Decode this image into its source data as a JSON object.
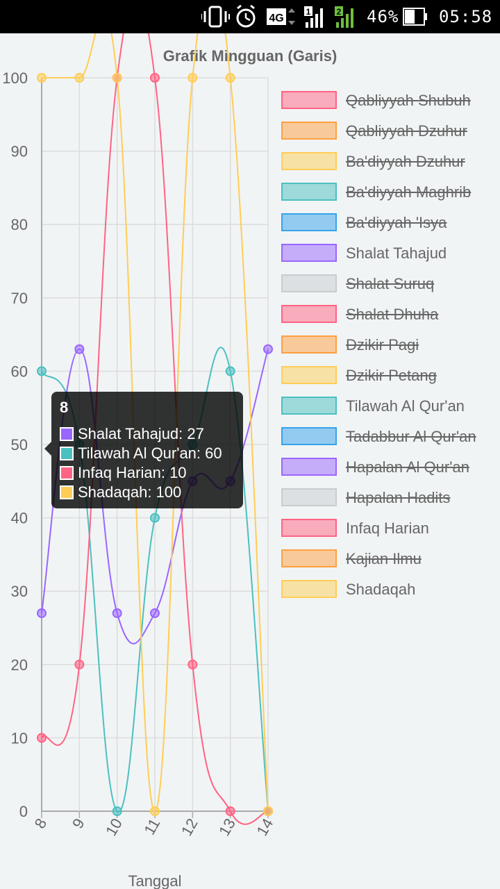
{
  "status_bar": {
    "battery_label": "46%",
    "time": "05:58",
    "network_label": "4G",
    "sim1_label": "1",
    "sim2_label": "2"
  },
  "chart_data": {
    "type": "line",
    "title": "Grafik Mingguan (Garis)",
    "xlabel": "Tanggal",
    "ylabel": "",
    "x": [
      "8",
      "9",
      "10",
      "11",
      "12",
      "13",
      "14"
    ],
    "ylim": [
      0,
      100
    ],
    "yticks": [
      0,
      10,
      20,
      30,
      40,
      50,
      60,
      70,
      80,
      90,
      100
    ],
    "grid": true,
    "legend_position": "right",
    "legend": [
      {
        "label": "Qabliyyah Shubuh",
        "color": "#ff6384",
        "hidden": true
      },
      {
        "label": "Qabliyyah Dzuhur",
        "color": "#ff9f40",
        "hidden": true
      },
      {
        "label": "Ba'diyyah Dzuhur",
        "color": "#ffcd56",
        "hidden": true
      },
      {
        "label": "Ba'diyyah Maghrib",
        "color": "#4bc0c0",
        "hidden": true
      },
      {
        "label": "Ba'diyyah 'Isya",
        "color": "#36a2eb",
        "hidden": true
      },
      {
        "label": "Shalat Tahajud",
        "color": "#9966ff",
        "hidden": false
      },
      {
        "label": "Shalat Suruq",
        "color": "#c9cbcf",
        "hidden": true
      },
      {
        "label": "Shalat Dhuha",
        "color": "#ff6384",
        "hidden": true
      },
      {
        "label": "Dzikir Pagi",
        "color": "#ff9f40",
        "hidden": true
      },
      {
        "label": "Dzikir Petang",
        "color": "#ffcd56",
        "hidden": true
      },
      {
        "label": "Tilawah Al Qur'an",
        "color": "#4bc0c0",
        "hidden": false
      },
      {
        "label": "Tadabbur Al Qur'an",
        "color": "#36a2eb",
        "hidden": true
      },
      {
        "label": "Hapalan Al Qur'an",
        "color": "#9966ff",
        "hidden": true
      },
      {
        "label": "Hapalan Hadits",
        "color": "#c9cbcf",
        "hidden": true
      },
      {
        "label": "Infaq Harian",
        "color": "#ff6384",
        "hidden": false
      },
      {
        "label": "Kajian Ilmu",
        "color": "#ff9f40",
        "hidden": true
      },
      {
        "label": "Shadaqah",
        "color": "#ffcd56",
        "hidden": false
      }
    ],
    "series": [
      {
        "name": "Shalat Tahajud",
        "color": "#9966ff",
        "values": [
          27,
          63,
          27,
          27,
          45,
          45,
          63
        ]
      },
      {
        "name": "Tilawah Al Qur'an",
        "color": "#4bc0c0",
        "values": [
          60,
          50,
          0,
          40,
          50,
          60,
          0
        ]
      },
      {
        "name": "Infaq Harian",
        "color": "#ff6384",
        "values": [
          10,
          20,
          100,
          100,
          20,
          0,
          0
        ]
      },
      {
        "name": "Shadaqah",
        "color": "#ffcd56",
        "values": [
          100,
          100,
          100,
          0,
          100,
          100,
          0
        ]
      }
    ],
    "tooltip": {
      "title": "8",
      "items": [
        {
          "text": "Shalat Tahajud: 27",
          "color": "#9966ff"
        },
        {
          "text": "Tilawah Al Qur'an: 60",
          "color": "#4bc0c0"
        },
        {
          "text": "Infaq Harian: 10",
          "color": "#ff6384"
        },
        {
          "text": "Shadaqah: 100",
          "color": "#ffcd56"
        }
      ]
    }
  }
}
